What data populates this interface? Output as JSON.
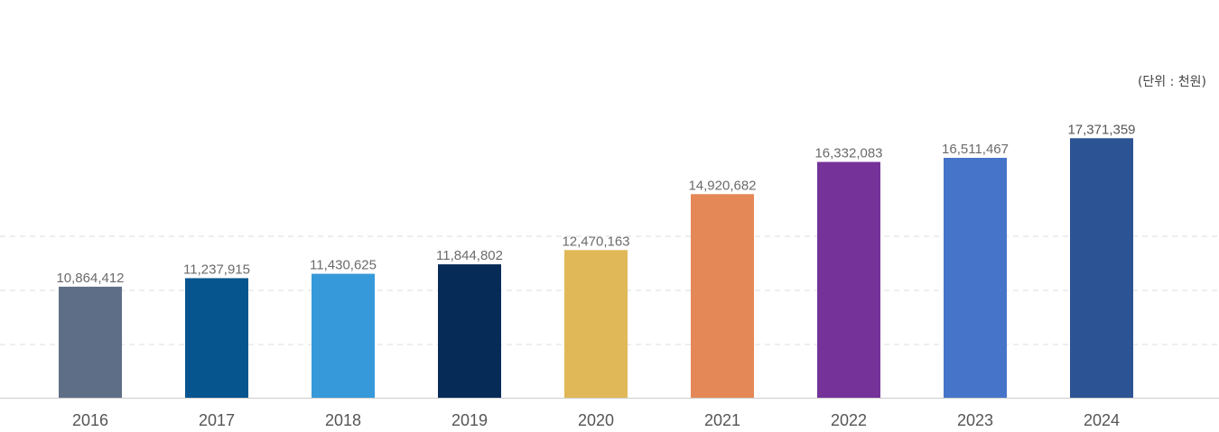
{
  "chart_data": {
    "type": "bar",
    "unit_label": "(단위 : 천원)",
    "categories": [
      "2016",
      "2017",
      "2018",
      "2019",
      "2020",
      "2021",
      "2022",
      "2023",
      "2024"
    ],
    "values": [
      10864412,
      11237915,
      11430625,
      11844802,
      12470163,
      14920682,
      16332083,
      16511467,
      17371359
    ],
    "value_labels": [
      "10,864,412",
      "11,237,915",
      "11,430,625",
      "11,844,802",
      "12,470,163",
      "14,920,682",
      "16,332,083",
      "16,511,467",
      "17,371,359"
    ],
    "colors": [
      "#5e6e87",
      "#07558f",
      "#3699da",
      "#062b57",
      "#e1b858",
      "#e48857",
      "#75339a",
      "#4674c9",
      "#2c5394"
    ],
    "grid": true,
    "grid_style": "dashed",
    "axis_color": "#cccccc",
    "grid_color": "#dddddd"
  }
}
